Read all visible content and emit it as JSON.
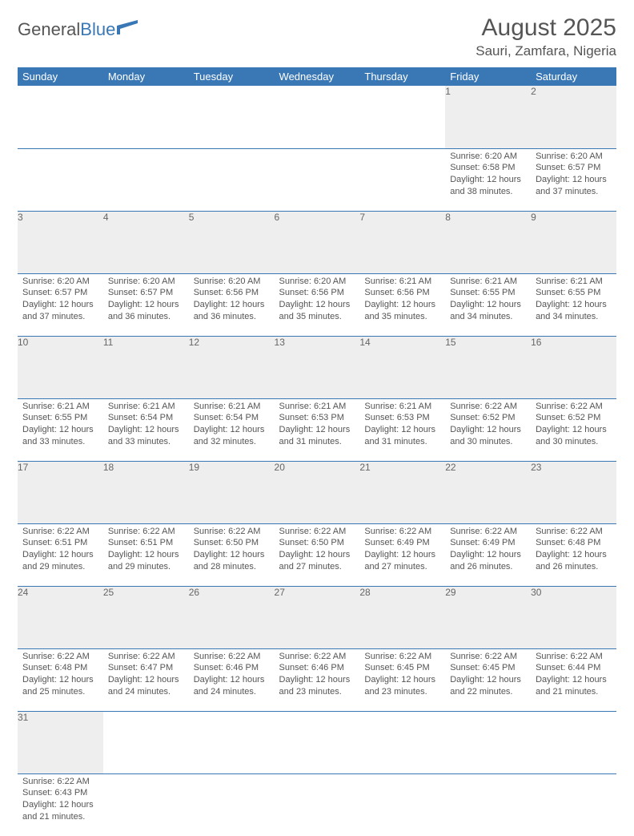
{
  "logo": {
    "general": "General",
    "blue": "Blue"
  },
  "title": "August 2025",
  "location": "Sauri, Zamfara, Nigeria",
  "colors": {
    "header_bg": "#3a78b5",
    "header_text": "#ffffff",
    "daynum_bg": "#eeeeee",
    "row_border": "#3a78b5",
    "text": "#555555"
  },
  "weekdays": [
    "Sunday",
    "Monday",
    "Tuesday",
    "Wednesday",
    "Thursday",
    "Friday",
    "Saturday"
  ],
  "weeks": [
    [
      null,
      null,
      null,
      null,
      null,
      {
        "n": "1",
        "sr": "Sunrise: 6:20 AM",
        "ss": "Sunset: 6:58 PM",
        "d1": "Daylight: 12 hours",
        "d2": "and 38 minutes."
      },
      {
        "n": "2",
        "sr": "Sunrise: 6:20 AM",
        "ss": "Sunset: 6:57 PM",
        "d1": "Daylight: 12 hours",
        "d2": "and 37 minutes."
      }
    ],
    [
      {
        "n": "3",
        "sr": "Sunrise: 6:20 AM",
        "ss": "Sunset: 6:57 PM",
        "d1": "Daylight: 12 hours",
        "d2": "and 37 minutes."
      },
      {
        "n": "4",
        "sr": "Sunrise: 6:20 AM",
        "ss": "Sunset: 6:57 PM",
        "d1": "Daylight: 12 hours",
        "d2": "and 36 minutes."
      },
      {
        "n": "5",
        "sr": "Sunrise: 6:20 AM",
        "ss": "Sunset: 6:56 PM",
        "d1": "Daylight: 12 hours",
        "d2": "and 36 minutes."
      },
      {
        "n": "6",
        "sr": "Sunrise: 6:20 AM",
        "ss": "Sunset: 6:56 PM",
        "d1": "Daylight: 12 hours",
        "d2": "and 35 minutes."
      },
      {
        "n": "7",
        "sr": "Sunrise: 6:21 AM",
        "ss": "Sunset: 6:56 PM",
        "d1": "Daylight: 12 hours",
        "d2": "and 35 minutes."
      },
      {
        "n": "8",
        "sr": "Sunrise: 6:21 AM",
        "ss": "Sunset: 6:55 PM",
        "d1": "Daylight: 12 hours",
        "d2": "and 34 minutes."
      },
      {
        "n": "9",
        "sr": "Sunrise: 6:21 AM",
        "ss": "Sunset: 6:55 PM",
        "d1": "Daylight: 12 hours",
        "d2": "and 34 minutes."
      }
    ],
    [
      {
        "n": "10",
        "sr": "Sunrise: 6:21 AM",
        "ss": "Sunset: 6:55 PM",
        "d1": "Daylight: 12 hours",
        "d2": "and 33 minutes."
      },
      {
        "n": "11",
        "sr": "Sunrise: 6:21 AM",
        "ss": "Sunset: 6:54 PM",
        "d1": "Daylight: 12 hours",
        "d2": "and 33 minutes."
      },
      {
        "n": "12",
        "sr": "Sunrise: 6:21 AM",
        "ss": "Sunset: 6:54 PM",
        "d1": "Daylight: 12 hours",
        "d2": "and 32 minutes."
      },
      {
        "n": "13",
        "sr": "Sunrise: 6:21 AM",
        "ss": "Sunset: 6:53 PM",
        "d1": "Daylight: 12 hours",
        "d2": "and 31 minutes."
      },
      {
        "n": "14",
        "sr": "Sunrise: 6:21 AM",
        "ss": "Sunset: 6:53 PM",
        "d1": "Daylight: 12 hours",
        "d2": "and 31 minutes."
      },
      {
        "n": "15",
        "sr": "Sunrise: 6:22 AM",
        "ss": "Sunset: 6:52 PM",
        "d1": "Daylight: 12 hours",
        "d2": "and 30 minutes."
      },
      {
        "n": "16",
        "sr": "Sunrise: 6:22 AM",
        "ss": "Sunset: 6:52 PM",
        "d1": "Daylight: 12 hours",
        "d2": "and 30 minutes."
      }
    ],
    [
      {
        "n": "17",
        "sr": "Sunrise: 6:22 AM",
        "ss": "Sunset: 6:51 PM",
        "d1": "Daylight: 12 hours",
        "d2": "and 29 minutes."
      },
      {
        "n": "18",
        "sr": "Sunrise: 6:22 AM",
        "ss": "Sunset: 6:51 PM",
        "d1": "Daylight: 12 hours",
        "d2": "and 29 minutes."
      },
      {
        "n": "19",
        "sr": "Sunrise: 6:22 AM",
        "ss": "Sunset: 6:50 PM",
        "d1": "Daylight: 12 hours",
        "d2": "and 28 minutes."
      },
      {
        "n": "20",
        "sr": "Sunrise: 6:22 AM",
        "ss": "Sunset: 6:50 PM",
        "d1": "Daylight: 12 hours",
        "d2": "and 27 minutes."
      },
      {
        "n": "21",
        "sr": "Sunrise: 6:22 AM",
        "ss": "Sunset: 6:49 PM",
        "d1": "Daylight: 12 hours",
        "d2": "and 27 minutes."
      },
      {
        "n": "22",
        "sr": "Sunrise: 6:22 AM",
        "ss": "Sunset: 6:49 PM",
        "d1": "Daylight: 12 hours",
        "d2": "and 26 minutes."
      },
      {
        "n": "23",
        "sr": "Sunrise: 6:22 AM",
        "ss": "Sunset: 6:48 PM",
        "d1": "Daylight: 12 hours",
        "d2": "and 26 minutes."
      }
    ],
    [
      {
        "n": "24",
        "sr": "Sunrise: 6:22 AM",
        "ss": "Sunset: 6:48 PM",
        "d1": "Daylight: 12 hours",
        "d2": "and 25 minutes."
      },
      {
        "n": "25",
        "sr": "Sunrise: 6:22 AM",
        "ss": "Sunset: 6:47 PM",
        "d1": "Daylight: 12 hours",
        "d2": "and 24 minutes."
      },
      {
        "n": "26",
        "sr": "Sunrise: 6:22 AM",
        "ss": "Sunset: 6:46 PM",
        "d1": "Daylight: 12 hours",
        "d2": "and 24 minutes."
      },
      {
        "n": "27",
        "sr": "Sunrise: 6:22 AM",
        "ss": "Sunset: 6:46 PM",
        "d1": "Daylight: 12 hours",
        "d2": "and 23 minutes."
      },
      {
        "n": "28",
        "sr": "Sunrise: 6:22 AM",
        "ss": "Sunset: 6:45 PM",
        "d1": "Daylight: 12 hours",
        "d2": "and 23 minutes."
      },
      {
        "n": "29",
        "sr": "Sunrise: 6:22 AM",
        "ss": "Sunset: 6:45 PM",
        "d1": "Daylight: 12 hours",
        "d2": "and 22 minutes."
      },
      {
        "n": "30",
        "sr": "Sunrise: 6:22 AM",
        "ss": "Sunset: 6:44 PM",
        "d1": "Daylight: 12 hours",
        "d2": "and 21 minutes."
      }
    ],
    [
      {
        "n": "31",
        "sr": "Sunrise: 6:22 AM",
        "ss": "Sunset: 6:43 PM",
        "d1": "Daylight: 12 hours",
        "d2": "and 21 minutes."
      },
      null,
      null,
      null,
      null,
      null,
      null
    ]
  ]
}
